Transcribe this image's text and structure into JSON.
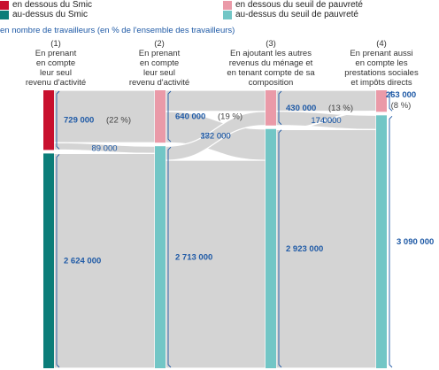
{
  "legend": [
    {
      "label": "en dessous du Smic",
      "color": "#c8102e"
    },
    {
      "label": "en dessous du seuil de pauvreté",
      "color": "#ea9aa8"
    },
    {
      "label": "au-dessus du Smic",
      "color": "#0b7d79"
    },
    {
      "label": "au-dessus du seuil de pauvreté",
      "color": "#72c6c6"
    }
  ],
  "subtitle": "en nombre de travailleurs (en % de l'ensemble des travailleurs)",
  "columns": [
    {
      "number": "(1)",
      "lines": [
        "En prenant",
        "en compte",
        "leur seul",
        "revenu d'activité"
      ]
    },
    {
      "number": "(2)",
      "lines": [
        "En prenant",
        "en compte",
        "leur seul",
        "revenu d'activité"
      ]
    },
    {
      "number": "(3)",
      "lines": [
        "En ajoutant les autres",
        "revenus du ménage et",
        "en tenant compte de sa",
        "composition"
      ]
    },
    {
      "number": "(4)",
      "lines": [
        "En prenant aussi",
        "en compte les",
        "prestations sociales",
        "et impôts directs"
      ]
    }
  ],
  "chart_data": {
    "type": "sankey",
    "stages": [
      {
        "stage": "(1)",
        "nodes": [
          {
            "name": "en dessous du Smic",
            "value": 729000,
            "value_label": "729 000",
            "pct_label": "(22 %)",
            "color": "#c8102e"
          },
          {
            "name": "au-dessus du Smic",
            "value": 2624000,
            "value_label": "2 624 000",
            "pct_label": "",
            "color": "#0b7d79"
          }
        ]
      },
      {
        "stage": "(2)",
        "nodes": [
          {
            "name": "en dessous du seuil de pauvreté",
            "value": 640000,
            "value_label": "640 000",
            "pct_label": "(19 %)",
            "color": "#ea9aa8"
          },
          {
            "name": "au-dessus du seuil de pauvreté",
            "value": 2713000,
            "value_label": "2 713 000",
            "pct_label": "",
            "color": "#72c6c6"
          }
        ]
      },
      {
        "stage": "(3)",
        "nodes": [
          {
            "name": "en dessous du seuil de pauvreté",
            "value": 430000,
            "value_label": "430 000",
            "pct_label": "(13 %)",
            "color": "#ea9aa8"
          },
          {
            "name": "au-dessus du seuil de pauvreté",
            "value": 2923000,
            "value_label": "2 923 000",
            "pct_label": "",
            "color": "#72c6c6"
          }
        ]
      },
      {
        "stage": "(4)",
        "nodes": [
          {
            "name": "en dessous du seuil de pauvreté",
            "value": 263000,
            "value_label": "263 000",
            "pct_label": "(8 %)",
            "color": "#ea9aa8"
          },
          {
            "name": "au-dessus du seuil de pauvreté",
            "value": 3090000,
            "value_label": "3 090 000",
            "pct_label": "",
            "color": "#72c6c6"
          }
        ]
      }
    ],
    "flows": [
      {
        "from_stage": 0,
        "to_stage": 1,
        "source": 0,
        "target": 0,
        "value": 640000,
        "label": ""
      },
      {
        "from_stage": 0,
        "to_stage": 1,
        "source": 0,
        "target": 1,
        "value": 89000,
        "label": "89 000"
      },
      {
        "from_stage": 0,
        "to_stage": 1,
        "source": 1,
        "target": 1,
        "value": 2624000,
        "label": ""
      },
      {
        "from_stage": 1,
        "to_stage": 2,
        "source": 0,
        "target": 0,
        "value": 258000,
        "label": ""
      },
      {
        "from_stage": 1,
        "to_stage": 2,
        "source": 0,
        "target": 1,
        "value": 382000,
        "label": "382 000"
      },
      {
        "from_stage": 1,
        "to_stage": 2,
        "source": 1,
        "target": 0,
        "value": 172000,
        "label": "172 000"
      },
      {
        "from_stage": 1,
        "to_stage": 2,
        "source": 1,
        "target": 1,
        "value": 2541000,
        "label": ""
      },
      {
        "from_stage": 2,
        "to_stage": 3,
        "source": 0,
        "target": 0,
        "value": 256000,
        "label": ""
      },
      {
        "from_stage": 2,
        "to_stage": 3,
        "source": 0,
        "target": 1,
        "value": 174000,
        "label": "174 000"
      },
      {
        "from_stage": 2,
        "to_stage": 3,
        "source": 1,
        "target": 0,
        "value": 7000,
        "label": "7 000"
      },
      {
        "from_stage": 2,
        "to_stage": 3,
        "source": 1,
        "target": 1,
        "value": 2916000,
        "label": ""
      }
    ]
  }
}
